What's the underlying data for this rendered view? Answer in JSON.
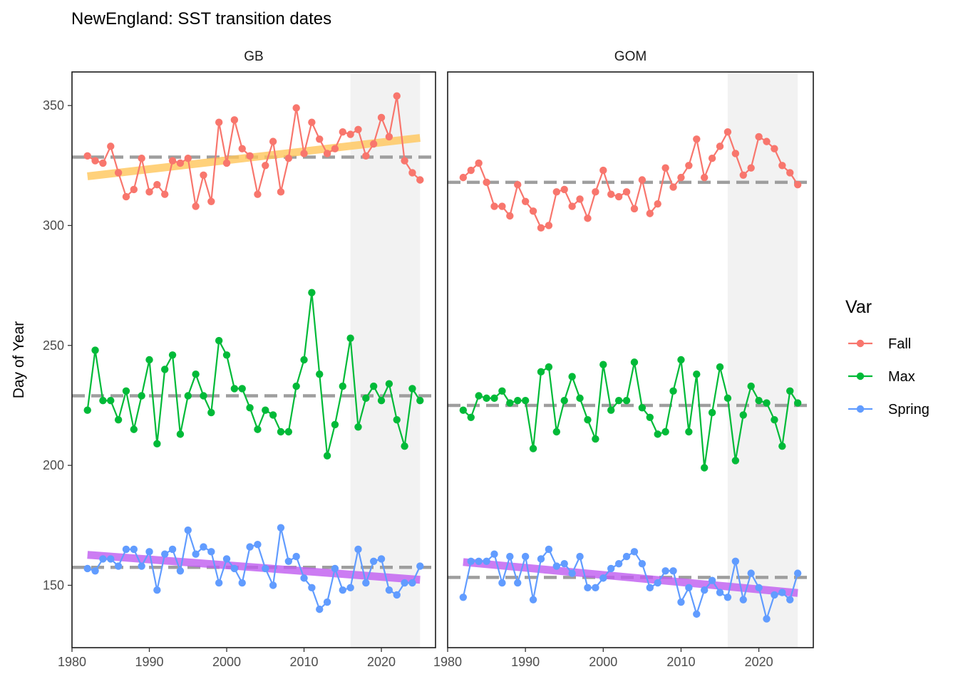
{
  "chart_data": {
    "type": "line",
    "title": "NewEngland: SST transition dates",
    "ylabel": "Day of Year",
    "xlabel": "",
    "xlim": [
      1980,
      2027
    ],
    "ylim": [
      124,
      364
    ],
    "xticks": [
      1980,
      1990,
      2000,
      2010,
      2020
    ],
    "yticks": [
      150,
      200,
      250,
      300,
      350
    ],
    "legend": {
      "title": "Var",
      "position": "right",
      "entries": [
        {
          "name": "Fall",
          "color": "#F8766D"
        },
        {
          "name": "Max",
          "color": "#00BA38"
        },
        {
          "name": "Spring",
          "color": "#619CFF"
        }
      ]
    },
    "shaded_years": [
      2016,
      2025
    ],
    "panels": [
      {
        "name": "GB",
        "x_start": 1982,
        "series": [
          {
            "name": "Fall",
            "color": "#F8766D",
            "values": [
              329,
              327,
              326,
              333,
              322,
              312,
              315,
              328,
              314,
              317,
              313,
              327,
              326,
              328,
              308,
              321,
              310,
              343,
              326,
              344,
              332,
              329,
              313,
              325,
              335,
              314,
              328,
              349,
              330,
              343,
              336,
              330,
              332,
              339,
              338,
              340,
              329,
              334,
              345,
              337,
              354,
              327,
              322,
              319
            ]
          },
          {
            "name": "Max",
            "color": "#00BA38",
            "values": [
              223,
              248,
              227,
              227,
              219,
              231,
              215,
              229,
              244,
              209,
              240,
              246,
              213,
              229,
              238,
              229,
              222,
              252,
              246,
              232,
              232,
              224,
              215,
              223,
              221,
              214,
              214,
              233,
              244,
              272,
              238,
              204,
              217,
              233,
              253,
              216,
              228,
              233,
              227,
              234,
              219,
              208,
              232,
              227
            ]
          },
          {
            "name": "Spring",
            "color": "#619CFF",
            "values": [
              157,
              156,
              161,
              161,
              158,
              165,
              165,
              158,
              164,
              148,
              163,
              165,
              156,
              173,
              163,
              166,
              164,
              151,
              161,
              157,
              151,
              166,
              167,
              157,
              150,
              174,
              160,
              162,
              153,
              149,
              140,
              143,
              157,
              148,
              149,
              165,
              151,
              160,
              161,
              148,
              146,
              151,
              151,
              158
            ]
          }
        ],
        "mean_lines": {
          "Fall": 328.5,
          "Max": 229,
          "Spring": 157.5
        },
        "trend_lines": [
          {
            "series": "Fall",
            "color": "#FFC55A",
            "from": [
              1982,
              320.5
            ],
            "to": [
              2025,
              336.5
            ]
          },
          {
            "series": "Spring",
            "color": "#BF5BF0",
            "from": [
              1982,
              162.7
            ],
            "to": [
              2025,
              152.3
            ]
          }
        ]
      },
      {
        "name": "GOM",
        "x_start": 1982,
        "series": [
          {
            "name": "Fall",
            "color": "#F8766D",
            "values": [
              320,
              323,
              326,
              318,
              308,
              308,
              304,
              317,
              310,
              306,
              299,
              300,
              314,
              315,
              308,
              311,
              303,
              314,
              323,
              313,
              312,
              314,
              307,
              319,
              305,
              309,
              324,
              316,
              320,
              325,
              336,
              320,
              328,
              333,
              339,
              330,
              321,
              324,
              337,
              335,
              332,
              325,
              322,
              317
            ]
          },
          {
            "name": "Max",
            "color": "#00BA38",
            "values": [
              223,
              220,
              229,
              228,
              228,
              231,
              226,
              227,
              227,
              207,
              239,
              241,
              214,
              227,
              237,
              228,
              219,
              211,
              242,
              223,
              227,
              227,
              243,
              224,
              220,
              213,
              214,
              231,
              244,
              214,
              238,
              199,
              222,
              241,
              228,
              202,
              221,
              233,
              227,
              226,
              219,
              208,
              231,
              226
            ]
          },
          {
            "name": "Spring",
            "color": "#619CFF",
            "values": [
              145,
              160,
              160,
              160,
              163,
              151,
              162,
              151,
              162,
              144,
              161,
              165,
              158,
              159,
              155,
              162,
              149,
              149,
              153,
              157,
              159,
              162,
              164,
              159,
              149,
              151,
              156,
              156,
              143,
              149,
              138,
              148,
              152,
              147,
              145,
              160,
              144,
              155,
              149,
              136,
              146,
              147,
              144,
              155
            ]
          }
        ],
        "mean_lines": {
          "Fall": 318,
          "Max": 225,
          "Spring": 153.3
        },
        "trend_lines": [
          {
            "series": "Spring",
            "color": "#BF5BF0",
            "from": [
              1982,
              159.7
            ],
            "to": [
              2025,
              146.8
            ]
          }
        ]
      }
    ]
  }
}
